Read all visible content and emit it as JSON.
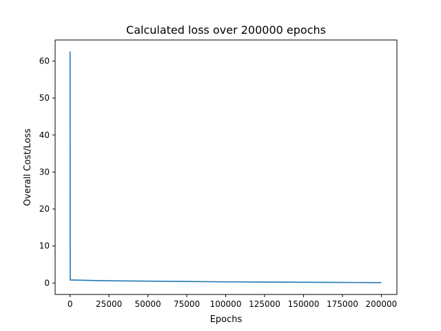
{
  "chart_data": {
    "type": "line",
    "title": "Calculated loss over 200000 epochs",
    "xlabel": "Epochs",
    "ylabel": "Overall Cost/Loss",
    "xlim": [
      -9600,
      210000
    ],
    "ylim": [
      -3.1,
      65.7
    ],
    "x_ticks": [
      0,
      25000,
      50000,
      75000,
      100000,
      125000,
      150000,
      175000,
      200000
    ],
    "x_tick_labels": [
      "0",
      "25000",
      "50000",
      "75000",
      "100000",
      "125000",
      "150000",
      "175000",
      "200000"
    ],
    "y_ticks": [
      0,
      10,
      20,
      30,
      40,
      50,
      60
    ],
    "y_tick_labels": [
      "0",
      "10",
      "20",
      "30",
      "40",
      "50",
      "60"
    ],
    "grid": false,
    "series": [
      {
        "color": "#1f77b4",
        "x": [
          0,
          100,
          1000,
          25000,
          50000,
          75000,
          100000,
          125000,
          150000,
          175000,
          200000
        ],
        "y": [
          62.6,
          0.8,
          0.8,
          0.6,
          0.5,
          0.4,
          0.3,
          0.25,
          0.2,
          0.15,
          0.1
        ]
      }
    ]
  }
}
